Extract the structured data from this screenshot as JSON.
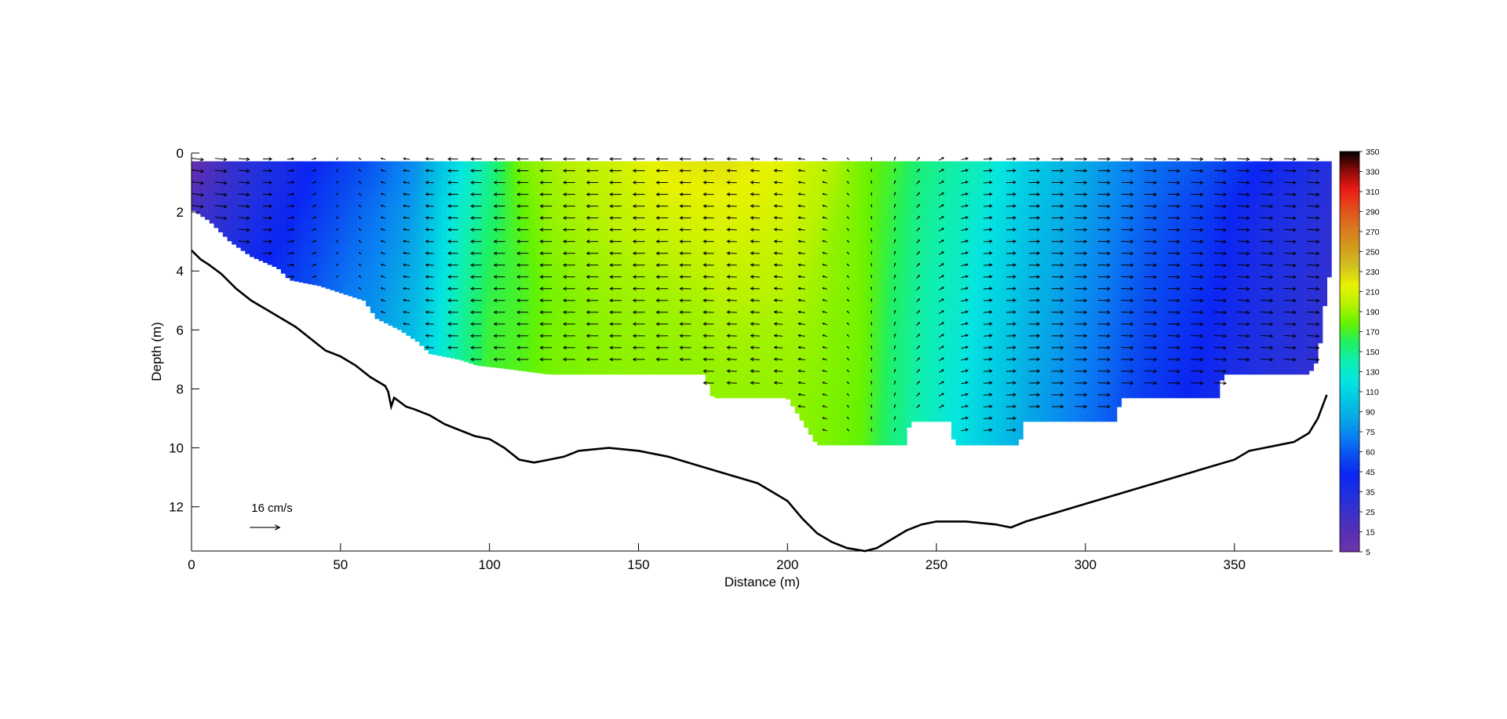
{
  "chart_data": {
    "type": "heatmap",
    "xlabel": "Distance (m)",
    "ylabel": "Depth (m)",
    "xlim": [
      0,
      383
    ],
    "ylim": [
      13.5,
      0
    ],
    "x_ticks": [
      0,
      50,
      100,
      150,
      200,
      250,
      300,
      350
    ],
    "y_ticks": [
      0,
      2,
      4,
      6,
      8,
      10,
      12
    ],
    "colorbar": {
      "ticks": [
        5,
        15,
        25,
        35,
        45,
        60,
        75,
        90,
        110,
        130,
        150,
        170,
        190,
        210,
        230,
        250,
        270,
        290,
        310,
        330,
        350
      ],
      "colors": [
        "#6a35a8",
        "#5a2fb5",
        "#3c30c8",
        "#2030e0",
        "#0b25f2",
        "#0a4cf0",
        "#0a7ff2",
        "#07a8e6",
        "#02c8e4",
        "#05e5e0",
        "#0fefb0",
        "#20f060",
        "#66f200",
        "#b8f200",
        "#e8f200",
        "#d0c020",
        "#d49a1c",
        "#d87820",
        "#e04e1c",
        "#ee1a14",
        "#8a0a08",
        "#000000"
      ]
    },
    "field": {
      "x": [
        0,
        15,
        30,
        45,
        60,
        75,
        90,
        100,
        110,
        120,
        140,
        160,
        180,
        200,
        215,
        225,
        235,
        245,
        255,
        265,
        280,
        300,
        320,
        340,
        360,
        381
      ],
      "values": [
        [
          15,
          45,
          60,
          75,
          90,
          110,
          150,
          175,
          205,
          215,
          225,
          238,
          240,
          232,
          218,
          205,
          195,
          180,
          172,
          165,
          140,
          120,
          100,
          90,
          70,
          55
        ],
        [
          15,
          45,
          60,
          78,
          92,
          112,
          155,
          178,
          203,
          213,
          222,
          235,
          236,
          230,
          215,
          205,
          192,
          178,
          170,
          160,
          138,
          118,
          98,
          85,
          65,
          50
        ],
        [
          18,
          45,
          62,
          80,
          95,
          115,
          160,
          180,
          200,
          212,
          220,
          230,
          232,
          228,
          212,
          205,
          190,
          176,
          168,
          155,
          135,
          115,
          95,
          80,
          60,
          50
        ],
        [
          20,
          46,
          64,
          82,
          98,
          118,
          163,
          183,
          198,
          210,
          218,
          225,
          228,
          224,
          210,
          205,
          188,
          175,
          166,
          152,
          132,
          112,
          92,
          78,
          58,
          48
        ],
        [
          22,
          48,
          66,
          84,
          100,
          120,
          166,
          186,
          196,
          208,
          215,
          220,
          224,
          220,
          210,
          205,
          186,
          173,
          164,
          150,
          130,
          110,
          90,
          76,
          58,
          48
        ],
        [
          24,
          50,
          68,
          86,
          102,
          122,
          168,
          188,
          195,
          206,
          213,
          216,
          220,
          218,
          208,
          205,
          184,
          172,
          162,
          148,
          128,
          108,
          88,
          74,
          56,
          46
        ],
        [
          26,
          52,
          70,
          88,
          104,
          125,
          170,
          190,
          195,
          205,
          212,
          214,
          216,
          215,
          208,
          204,
          183,
          171,
          160,
          146,
          126,
          106,
          86,
          72,
          56,
          46
        ],
        [
          28,
          54,
          72,
          90,
          106,
          128,
          172,
          192,
          196,
          205,
          210,
          212,
          214,
          213,
          207,
          203,
          182,
          170,
          158,
          144,
          124,
          104,
          84,
          70,
          54,
          45
        ],
        [
          30,
          56,
          74,
          92,
          108,
          130,
          173,
          193,
          197,
          205,
          210,
          211,
          212,
          212,
          206,
          202,
          181,
          169,
          156,
          142,
          122,
          102,
          82,
          68,
          54,
          45
        ],
        [
          32,
          58,
          76,
          94,
          110,
          132,
          174,
          194,
          198,
          205,
          209,
          210,
          211,
          211,
          206,
          201,
          180,
          168,
          155,
          140,
          120,
          100,
          80,
          66,
          52,
          44
        ]
      ]
    },
    "valid_bins": [
      [
        0,
        1.9
      ],
      [
        6,
        2.3
      ],
      [
        13,
        3.0
      ],
      [
        20,
        3.5
      ],
      [
        29,
        3.9
      ],
      [
        33,
        4.3
      ],
      [
        43,
        4.5
      ],
      [
        58,
        5.0
      ],
      [
        62,
        5.6
      ],
      [
        70,
        6.0
      ],
      [
        76,
        6.4
      ],
      [
        80,
        6.8
      ],
      [
        90,
        7.0
      ],
      [
        96,
        7.2
      ],
      [
        105,
        7.3
      ],
      [
        120,
        7.5
      ],
      [
        160,
        7.5
      ],
      [
        172,
        7.5
      ],
      [
        175,
        8.3
      ],
      [
        200,
        8.3
      ],
      [
        205,
        9.1
      ],
      [
        210,
        9.9
      ],
      [
        225,
        9.9
      ],
      [
        240,
        9.9
      ],
      [
        241,
        9.1
      ],
      [
        255,
        9.1
      ],
      [
        256,
        9.9
      ],
      [
        278,
        9.9
      ],
      [
        279,
        9.1
      ],
      [
        300,
        9.1
      ],
      [
        310,
        9.1
      ],
      [
        312,
        8.3
      ],
      [
        345,
        8.3
      ],
      [
        346,
        7.5
      ],
      [
        375,
        7.5
      ],
      [
        378,
        7.0
      ],
      [
        380,
        5.5
      ],
      [
        381,
        4.2
      ]
    ],
    "bathymetry": [
      [
        0,
        3.3
      ],
      [
        3,
        3.6
      ],
      [
        6,
        3.8
      ],
      [
        10,
        4.1
      ],
      [
        15,
        4.6
      ],
      [
        20,
        5.0
      ],
      [
        25,
        5.3
      ],
      [
        30,
        5.6
      ],
      [
        35,
        5.9
      ],
      [
        40,
        6.3
      ],
      [
        45,
        6.7
      ],
      [
        50,
        6.9
      ],
      [
        55,
        7.2
      ],
      [
        60,
        7.6
      ],
      [
        65,
        7.9
      ],
      [
        66,
        8.1
      ],
      [
        67,
        8.6
      ],
      [
        68,
        8.3
      ],
      [
        72,
        8.6
      ],
      [
        75,
        8.7
      ],
      [
        80,
        8.9
      ],
      [
        85,
        9.2
      ],
      [
        90,
        9.4
      ],
      [
        95,
        9.6
      ],
      [
        100,
        9.7
      ],
      [
        105,
        10.0
      ],
      [
        110,
        10.4
      ],
      [
        115,
        10.5
      ],
      [
        120,
        10.4
      ],
      [
        125,
        10.3
      ],
      [
        130,
        10.1
      ],
      [
        140,
        10.0
      ],
      [
        150,
        10.1
      ],
      [
        160,
        10.3
      ],
      [
        170,
        10.6
      ],
      [
        180,
        10.9
      ],
      [
        190,
        11.2
      ],
      [
        200,
        11.8
      ],
      [
        205,
        12.4
      ],
      [
        210,
        12.9
      ],
      [
        215,
        13.2
      ],
      [
        220,
        13.4
      ],
      [
        226,
        13.5
      ],
      [
        230,
        13.4
      ],
      [
        235,
        13.1
      ],
      [
        240,
        12.8
      ],
      [
        245,
        12.6
      ],
      [
        250,
        12.5
      ],
      [
        260,
        12.5
      ],
      [
        270,
        12.6
      ],
      [
        275,
        12.7
      ],
      [
        280,
        12.5
      ],
      [
        290,
        12.2
      ],
      [
        300,
        11.9
      ],
      [
        310,
        11.6
      ],
      [
        320,
        11.3
      ],
      [
        330,
        11.0
      ],
      [
        340,
        10.7
      ],
      [
        350,
        10.4
      ],
      [
        355,
        10.1
      ],
      [
        360,
        10.0
      ],
      [
        365,
        9.9
      ],
      [
        370,
        9.8
      ],
      [
        375,
        9.5
      ],
      [
        378,
        9.0
      ],
      [
        381,
        8.2
      ]
    ],
    "arrows": {
      "x_start": 2,
      "x_step": 7.8,
      "z_start": 0.2,
      "z_step": 0.4,
      "direction_by_x": [
        [
          0,
          1,
          0.15
        ],
        [
          20,
          0.8,
          0.05
        ],
        [
          40,
          0.3,
          -0.1
        ],
        [
          60,
          -0.2,
          -0.1
        ],
        [
          90,
          -0.8,
          0.0
        ],
        [
          120,
          -0.9,
          0.0
        ],
        [
          160,
          -0.9,
          0.0
        ],
        [
          200,
          -0.6,
          -0.05
        ],
        [
          220,
          -0.1,
          -0.1
        ],
        [
          235,
          0.05,
          -0.2
        ],
        [
          250,
          0.3,
          -0.2
        ],
        [
          265,
          0.6,
          -0.05
        ],
        [
          290,
          0.9,
          0.0
        ],
        [
          340,
          1.0,
          0.05
        ],
        [
          381,
          1.0,
          0.05
        ]
      ]
    },
    "scale_arrow": {
      "label": "16 cm/s",
      "x": 28,
      "z": 12.7
    }
  }
}
